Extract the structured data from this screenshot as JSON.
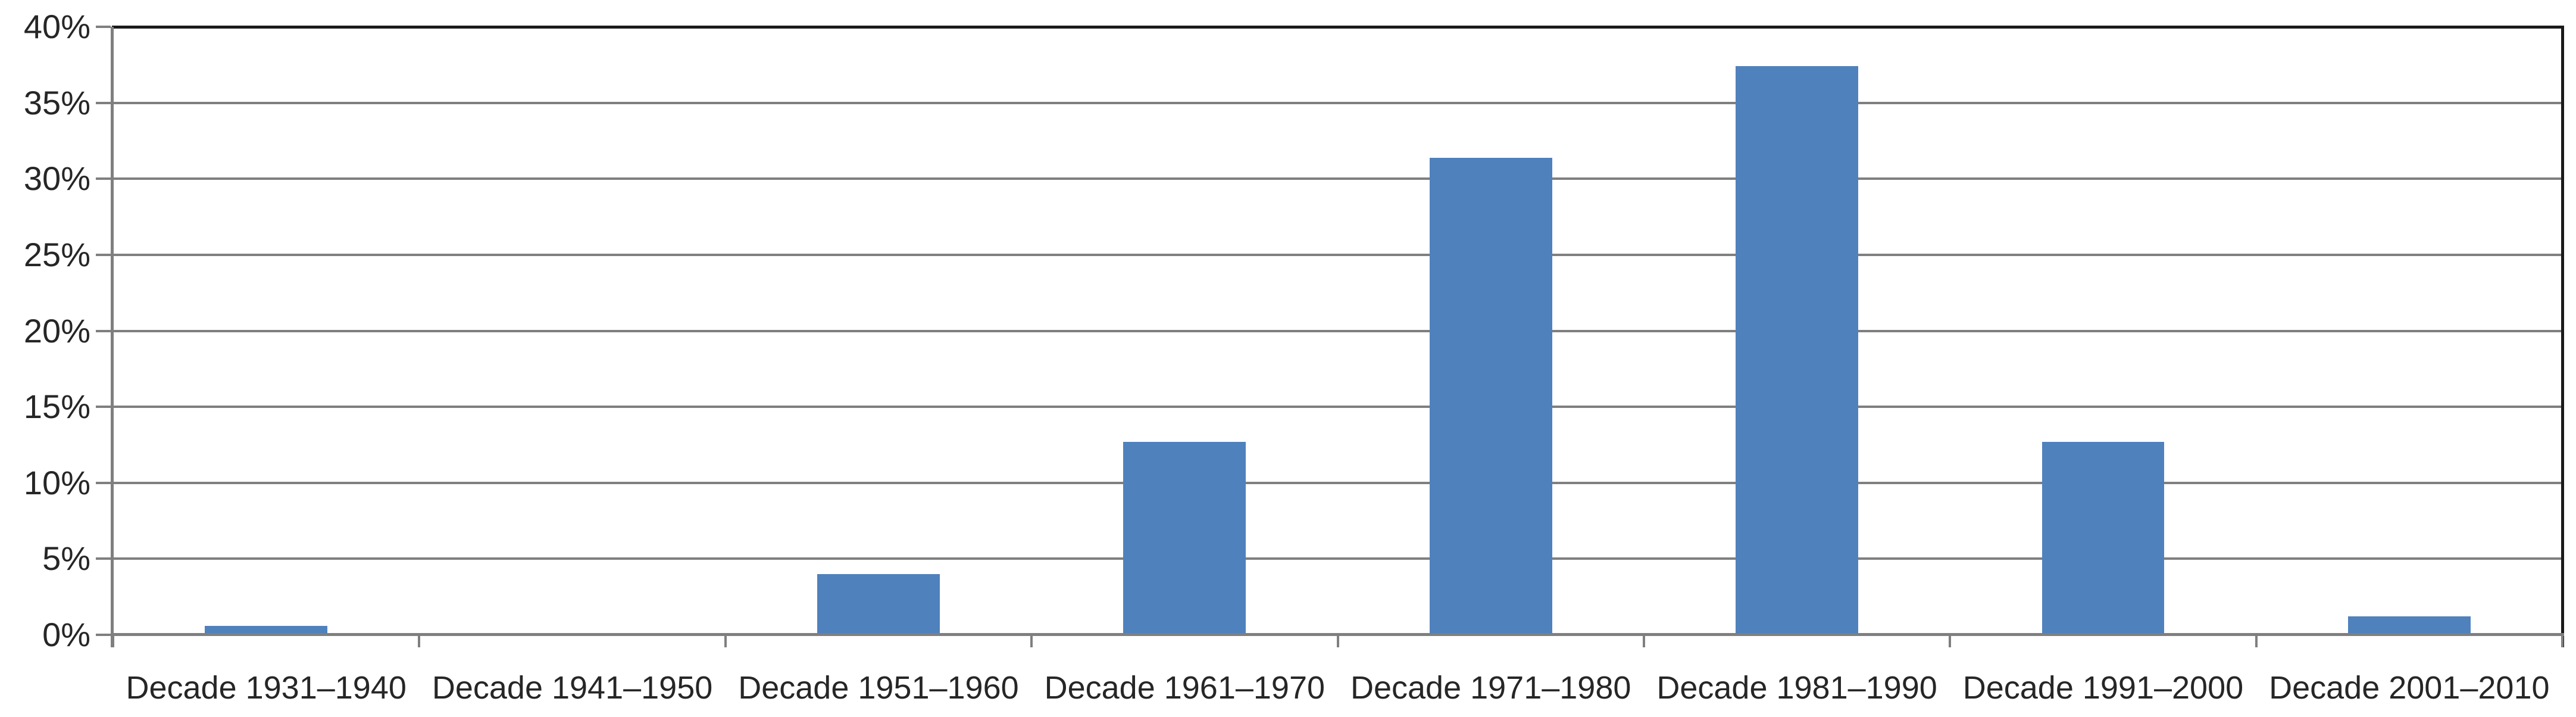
{
  "chart_data": {
    "type": "bar",
    "title": "",
    "xlabel": "",
    "ylabel": "",
    "unit": "%",
    "categories": [
      "Decade 1931–1940",
      "Decade 1941–1950",
      "Decade 1951–1960",
      "Decade 1961–1970",
      "Decade 1971–1980",
      "Decade 1981–1990",
      "Decade 1991–2000",
      "Decade 2001–2010"
    ],
    "values": [
      0.6,
      0,
      4.0,
      12.7,
      31.4,
      37.4,
      12.7,
      1.2
    ],
    "ylim": [
      0,
      40
    ],
    "ytick_step": 5,
    "ytick_labels": [
      "0%",
      "5%",
      "10%",
      "15%",
      "20%",
      "25%",
      "30%",
      "35%",
      "40%"
    ],
    "grid": true,
    "legend": "none",
    "colors": {
      "bar_fill": "#4F81BD",
      "gridline": "#7F7F7F",
      "axis_line": "#7F7F7F",
      "plot_border": "#1A1A1A",
      "tick_label_text": "#262626",
      "background": "#FFFFFF"
    }
  }
}
